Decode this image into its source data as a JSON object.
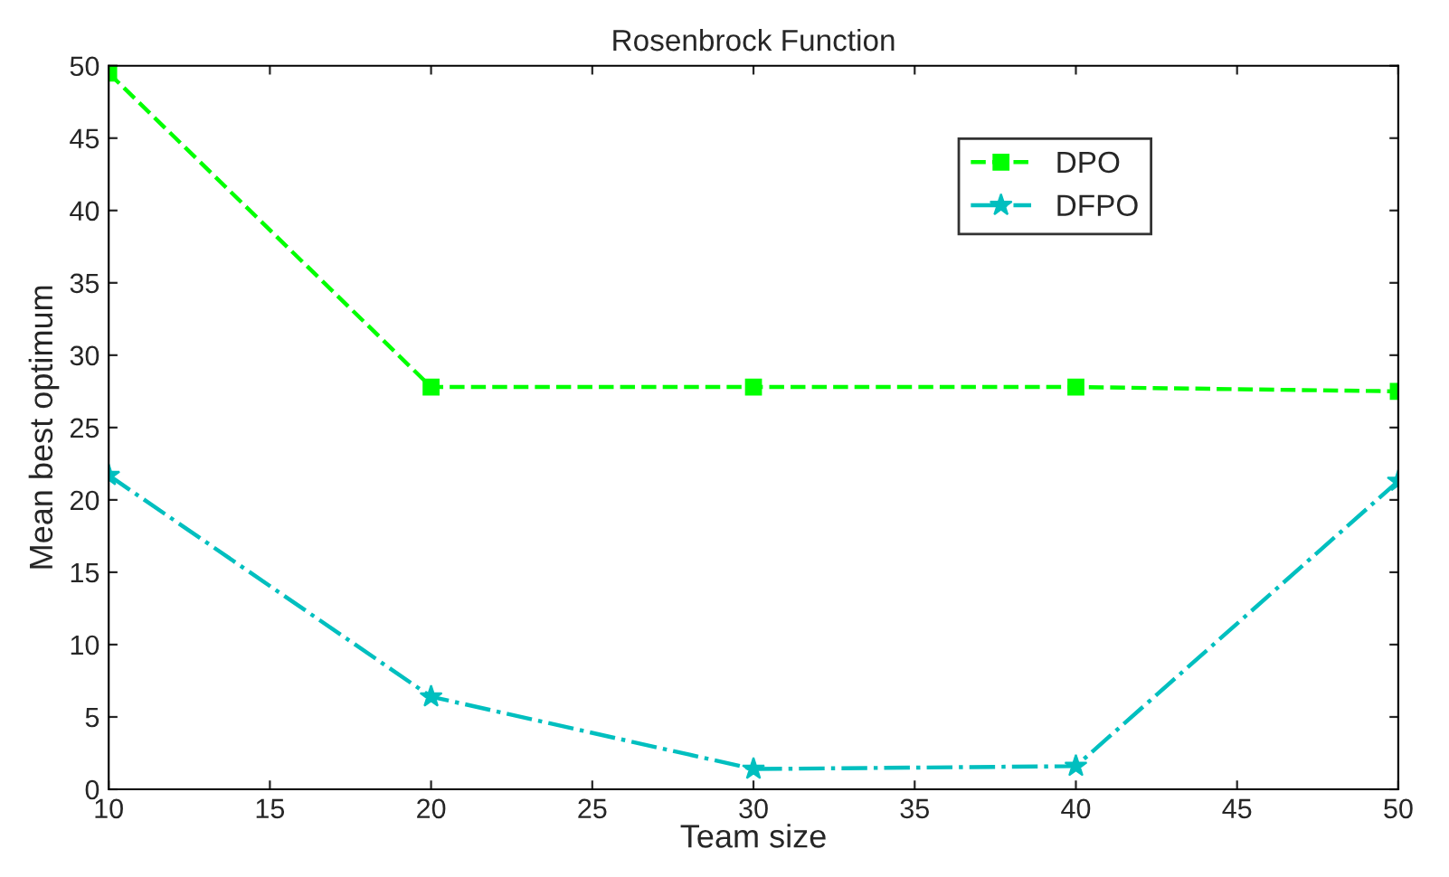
{
  "chart_data": {
    "type": "line",
    "title": "Rosenbrock Function",
    "xlabel": "Team size",
    "ylabel": "Mean best optimum",
    "x": [
      10,
      20,
      30,
      40,
      50
    ],
    "series": [
      {
        "name": "DPO",
        "color": "#00ff00",
        "marker": "square",
        "line_style": "dashed",
        "values": [
          49.5,
          27.8,
          27.8,
          27.8,
          27.5
        ]
      },
      {
        "name": "DFPO",
        "color": "#00bfbf",
        "marker": "star",
        "line_style": "dashdot",
        "values": [
          21.7,
          6.4,
          1.4,
          1.6,
          21.3
        ]
      }
    ],
    "xlim": [
      10,
      50
    ],
    "xticks": [
      10,
      15,
      20,
      25,
      30,
      35,
      40,
      45,
      50
    ],
    "ylim": [
      0,
      50
    ],
    "yticks": [
      0,
      5,
      10,
      15,
      20,
      25,
      30,
      35,
      40,
      45,
      50
    ],
    "grid": false,
    "legend": "top right"
  }
}
